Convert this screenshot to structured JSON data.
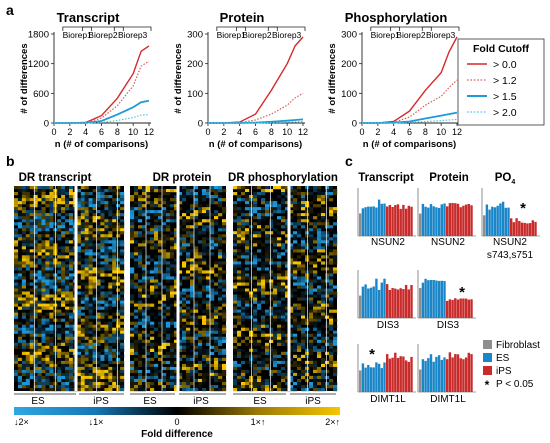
{
  "panels": {
    "a": "a",
    "b": "b",
    "c": "c"
  },
  "colors": {
    "red": "#d42a2a",
    "pink": "#d55b5b",
    "blue": "#1e9bd7",
    "lightblue": "#4fc6e6",
    "es": "#1a86c7",
    "ips": "#c92a2a",
    "fib": "#8e8e8e",
    "yellow": "#f7c600"
  },
  "panel_a": {
    "charts": [
      {
        "title": "Transcript",
        "yticks": [
          "1800",
          "1200",
          "600",
          "0"
        ],
        "ymax": 1800
      },
      {
        "title": "Protein",
        "yticks": [
          "300",
          "200",
          "100",
          "0"
        ],
        "ymax": 300
      },
      {
        "title": "Phosphorylation",
        "yticks": [
          "300",
          "200",
          "100",
          "0"
        ],
        "ymax": 300
      }
    ],
    "biorep": [
      "Biorep1",
      "Biorep2",
      "Biorep3"
    ],
    "xticks": [
      "0",
      "2",
      "4",
      "6",
      "8",
      "10",
      "12"
    ],
    "ylabel": "# of differences",
    "xlabel": "n (# of comparisons)",
    "legend_title": "Fold Cutoff",
    "legend": [
      "> 0.0",
      "> 1.2",
      "> 1.5",
      "> 2.0"
    ]
  },
  "chart_data": [
    {
      "type": "line",
      "title": "Transcript",
      "xlabel": "n (# of comparisons)",
      "ylabel": "# of differences",
      "x": [
        0,
        2,
        4,
        6,
        8,
        10,
        11,
        12
      ],
      "ylim": [
        0,
        1800
      ],
      "series": [
        {
          "name": "> 0.0",
          "values": [
            0,
            0,
            10,
            150,
            500,
            1000,
            1450,
            1560
          ]
        },
        {
          "name": "> 1.2",
          "values": [
            0,
            0,
            5,
            100,
            350,
            750,
            1150,
            1250
          ]
        },
        {
          "name": "> 1.5",
          "values": [
            0,
            0,
            0,
            40,
            170,
            320,
            420,
            450
          ]
        },
        {
          "name": "> 2.0",
          "values": [
            0,
            0,
            0,
            10,
            50,
            110,
            160,
            170
          ]
        }
      ]
    },
    {
      "type": "line",
      "title": "Protein",
      "xlabel": "n (# of comparisons)",
      "ylabel": "# of differences",
      "x": [
        0,
        2,
        4,
        6,
        8,
        10,
        11,
        12
      ],
      "ylim": [
        0,
        300
      ],
      "series": [
        {
          "name": "> 0.0",
          "values": [
            0,
            0,
            3,
            30,
            110,
            200,
            260,
            290
          ]
        },
        {
          "name": "> 1.2",
          "values": [
            0,
            0,
            1,
            10,
            30,
            60,
            85,
            100
          ]
        },
        {
          "name": "> 1.5",
          "values": [
            0,
            0,
            0,
            1,
            4,
            8,
            10,
            12
          ]
        },
        {
          "name": "> 2.0",
          "values": [
            0,
            0,
            0,
            0,
            1,
            3,
            4,
            5
          ]
        }
      ]
    },
    {
      "type": "line",
      "title": "Phosphorylation",
      "xlabel": "n (# of comparisons)",
      "ylabel": "# of differences",
      "x": [
        0,
        2,
        4,
        6,
        8,
        10,
        11,
        12
      ],
      "ylim": [
        0,
        300
      ],
      "series": [
        {
          "name": "> 0.0",
          "values": [
            0,
            0,
            5,
            40,
            110,
            170,
            240,
            290
          ]
        },
        {
          "name": "> 1.2",
          "values": [
            0,
            0,
            2,
            20,
            60,
            90,
            120,
            145
          ]
        },
        {
          "name": "> 1.5",
          "values": [
            0,
            0,
            1,
            5,
            15,
            25,
            30,
            35
          ]
        },
        {
          "name": "> 2.0",
          "values": [
            0,
            0,
            0,
            2,
            5,
            8,
            10,
            12
          ]
        }
      ]
    }
  ],
  "panel_b": {
    "titles": [
      "DR transcript",
      "DR protein",
      "DR phosphorylation"
    ],
    "groups": [
      "ES",
      "iPS"
    ],
    "colorbar_ticks": [
      "↓2×",
      "↓1×",
      "0",
      "1×↑",
      "2×↑"
    ],
    "colorbar_label": "Fold difference"
  },
  "panel_c": {
    "col_titles": [
      "Transcript",
      "Protein",
      "PO"
    ],
    "po_sub": "4",
    "row1": [
      "NSUN2",
      "NSUN2",
      "NSUN2"
    ],
    "row1_sub": "s743,s751",
    "row2": [
      "DIS3",
      "DIS3"
    ],
    "row3": [
      "DIMT1L",
      "DIMT1L"
    ],
    "star": "*",
    "legend": [
      "Fibroblast",
      "ES",
      "iPS",
      "P < 0.05"
    ]
  }
}
